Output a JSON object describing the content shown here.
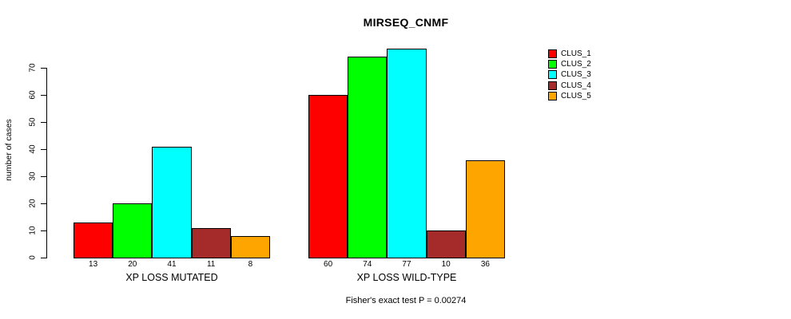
{
  "chart_data": {
    "type": "bar",
    "title": "MIRSEQ_CNMF",
    "ylabel": "number of cases",
    "xlabel": "",
    "ylim": [
      0,
      77
    ],
    "yticks": [
      0,
      10,
      20,
      30,
      40,
      50,
      60,
      70
    ],
    "grid": false,
    "legend_position": "right",
    "bar_value_labels": true,
    "categories": [
      "XP LOSS MUTATED",
      "XP LOSS WILD-TYPE"
    ],
    "series": [
      {
        "name": "CLUS_1",
        "color": "#FF0000",
        "values": [
          13,
          60
        ]
      },
      {
        "name": "CLUS_2",
        "color": "#00FF00",
        "values": [
          20,
          74
        ]
      },
      {
        "name": "CLUS_3",
        "color": "#00FFFF",
        "values": [
          41,
          77
        ]
      },
      {
        "name": "CLUS_4",
        "color": "#A52A2A",
        "values": [
          11,
          10
        ]
      },
      {
        "name": "CLUS_5",
        "color": "#FFA500",
        "values": [
          8,
          36
        ]
      }
    ],
    "groups": [
      {
        "label": "XP LOSS MUTATED",
        "values": [
          13,
          20,
          41,
          11,
          8
        ]
      },
      {
        "label": "XP LOSS WILD-TYPE",
        "values": [
          60,
          74,
          77,
          10,
          36
        ]
      }
    ],
    "annotation": "Fisher's exact test P = 0.00274"
  },
  "colors": {
    "background": "#FFFFFF",
    "axis": "#000000",
    "text": "#000000"
  }
}
